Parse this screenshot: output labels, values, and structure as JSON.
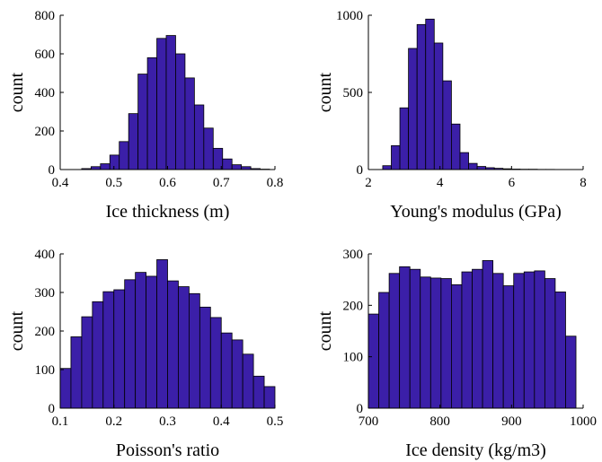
{
  "bar_color": "#3b1fa8",
  "chart_data": [
    {
      "type": "bar",
      "title": "",
      "xlabel": "Ice thickness (m)",
      "ylabel": "count",
      "xlim": [
        0.4,
        0.8
      ],
      "ylim": [
        0,
        800
      ],
      "xticks": [
        "0.4",
        "0.5",
        "0.6",
        "0.7",
        "0.8"
      ],
      "yticks": [
        "0",
        "200",
        "400",
        "600",
        "800"
      ],
      "bin_start": 0.44,
      "bin_width": 0.0175,
      "values": [
        5,
        15,
        30,
        75,
        145,
        290,
        495,
        580,
        680,
        695,
        600,
        475,
        335,
        215,
        110,
        55,
        25,
        15,
        5,
        2
      ]
    },
    {
      "type": "bar",
      "title": "",
      "xlabel": "Young's modulus (GPa)",
      "ylabel": "count",
      "xlim": [
        2,
        8
      ],
      "ylim": [
        0,
        1000
      ],
      "xticks": [
        "2",
        "4",
        "6",
        "8"
      ],
      "yticks": [
        "0",
        "500",
        "1000"
      ],
      "bin_start": 2.4,
      "bin_width": 0.24,
      "values": [
        25,
        155,
        400,
        785,
        940,
        975,
        820,
        575,
        295,
        110,
        40,
        20,
        12,
        8,
        5,
        3,
        2,
        2,
        1,
        1
      ]
    },
    {
      "type": "bar",
      "title": "",
      "xlabel": "Poisson's ratio",
      "ylabel": "count",
      "xlim": [
        0.1,
        0.5
      ],
      "ylim": [
        0,
        400
      ],
      "xticks": [
        "0.1",
        "0.2",
        "0.3",
        "0.4",
        "0.5"
      ],
      "yticks": [
        "0",
        "100",
        "200",
        "300",
        "400"
      ],
      "bin_start": 0.1,
      "bin_width": 0.02,
      "values": [
        103,
        185,
        237,
        276,
        302,
        307,
        333,
        352,
        342,
        385,
        330,
        315,
        297,
        262,
        235,
        195,
        177,
        140,
        83,
        56
      ]
    },
    {
      "type": "bar",
      "title": "",
      "xlabel": "Ice density (kg/m3)",
      "ylabel": "count",
      "xlim": [
        700,
        1000
      ],
      "ylim": [
        0,
        300
      ],
      "xticks": [
        "700",
        "800",
        "900",
        "1000"
      ],
      "yticks": [
        "0",
        "100",
        "200",
        "300"
      ],
      "bin_start": 700,
      "bin_width": 14.5,
      "values": [
        183,
        225,
        262,
        275,
        270,
        255,
        253,
        252,
        240,
        265,
        270,
        287,
        262,
        238,
        262,
        265,
        267,
        252,
        226,
        140
      ]
    }
  ]
}
